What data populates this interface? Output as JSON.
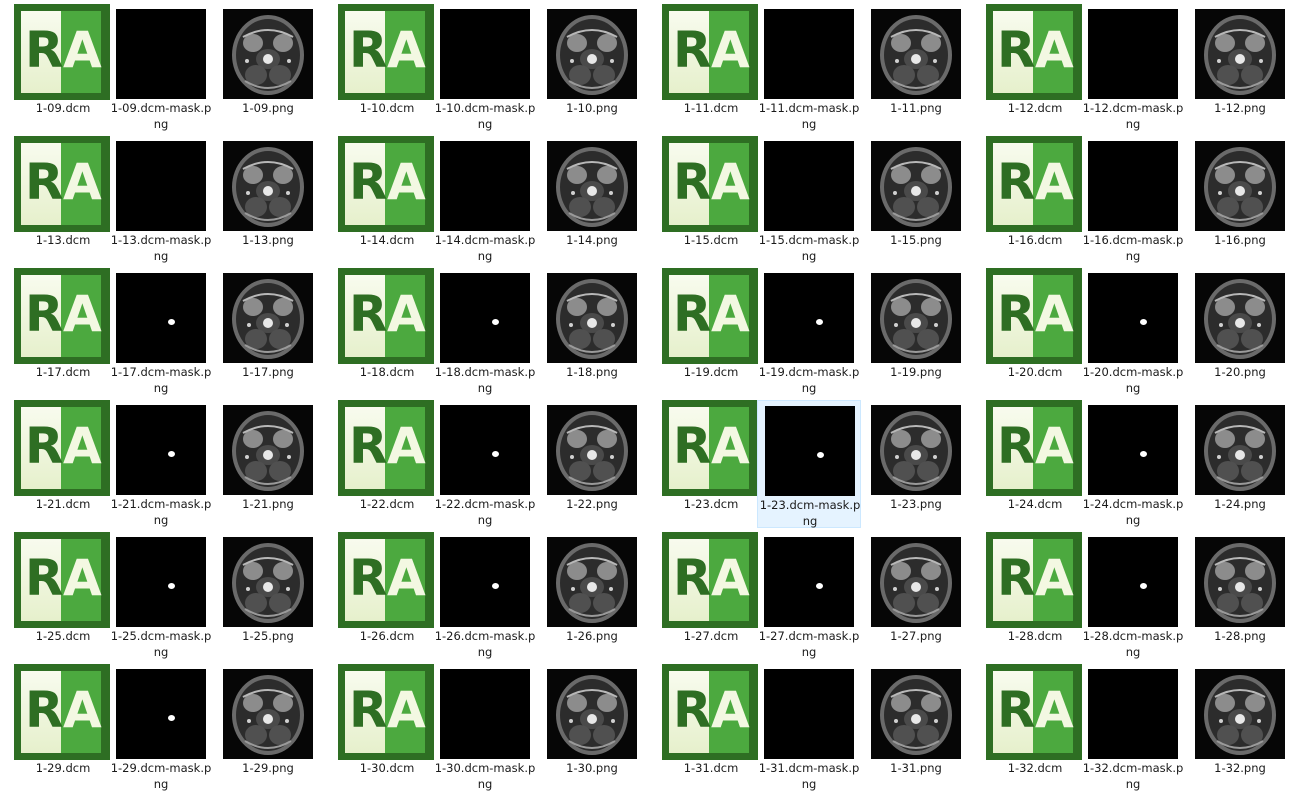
{
  "icon": "dicom-ra-icon",
  "icon_letters": [
    "R",
    "A"
  ],
  "colors": {
    "dark_green": "#2e6e23",
    "light_green": "#4ca93f",
    "cream": "#f3f8e2",
    "selection_bg": "#e5f3ff"
  },
  "selected_file": "1-23.dcm-mask.png",
  "groups": [
    {
      "dcm": "1-09.dcm",
      "mask": "1-09.dcm-mask.png",
      "png": "1-09.png",
      "lesion": 0
    },
    {
      "dcm": "1-10.dcm",
      "mask": "1-10.dcm-mask.png",
      "png": "1-10.png",
      "lesion": 0
    },
    {
      "dcm": "1-11.dcm",
      "mask": "1-11.dcm-mask.png",
      "png": "1-11.png",
      "lesion": 0
    },
    {
      "dcm": "1-12.dcm",
      "mask": "1-12.dcm-mask.png",
      "png": "1-12.png",
      "lesion": 0
    },
    {
      "dcm": "1-13.dcm",
      "mask": "1-13.dcm-mask.png",
      "png": "1-13.png",
      "lesion": 0
    },
    {
      "dcm": "1-14.dcm",
      "mask": "1-14.dcm-mask.png",
      "png": "1-14.png",
      "lesion": 0
    },
    {
      "dcm": "1-15.dcm",
      "mask": "1-15.dcm-mask.png",
      "png": "1-15.png",
      "lesion": 0
    },
    {
      "dcm": "1-16.dcm",
      "mask": "1-16.dcm-mask.png",
      "png": "1-16.png",
      "lesion": 0
    },
    {
      "dcm": "1-17.dcm",
      "mask": "1-17.dcm-mask.png",
      "png": "1-17.png",
      "lesion": 1
    },
    {
      "dcm": "1-18.dcm",
      "mask": "1-18.dcm-mask.png",
      "png": "1-18.png",
      "lesion": 1
    },
    {
      "dcm": "1-19.dcm",
      "mask": "1-19.dcm-mask.png",
      "png": "1-19.png",
      "lesion": 1
    },
    {
      "dcm": "1-20.dcm",
      "mask": "1-20.dcm-mask.png",
      "png": "1-20.png",
      "lesion": 1
    },
    {
      "dcm": "1-21.dcm",
      "mask": "1-21.dcm-mask.png",
      "png": "1-21.png",
      "lesion": 1
    },
    {
      "dcm": "1-22.dcm",
      "mask": "1-22.dcm-mask.png",
      "png": "1-22.png",
      "lesion": 1
    },
    {
      "dcm": "1-23.dcm",
      "mask": "1-23.dcm-mask.png",
      "png": "1-23.png",
      "lesion": 1
    },
    {
      "dcm": "1-24.dcm",
      "mask": "1-24.dcm-mask.png",
      "png": "1-24.png",
      "lesion": 1
    },
    {
      "dcm": "1-25.dcm",
      "mask": "1-25.dcm-mask.png",
      "png": "1-25.png",
      "lesion": 1
    },
    {
      "dcm": "1-26.dcm",
      "mask": "1-26.dcm-mask.png",
      "png": "1-26.png",
      "lesion": 1
    },
    {
      "dcm": "1-27.dcm",
      "mask": "1-27.dcm-mask.png",
      "png": "1-27.png",
      "lesion": 1
    },
    {
      "dcm": "1-28.dcm",
      "mask": "1-28.dcm-mask.png",
      "png": "1-28.png",
      "lesion": 1
    },
    {
      "dcm": "1-29.dcm",
      "mask": "1-29.dcm-mask.png",
      "png": "1-29.png",
      "lesion": 1
    },
    {
      "dcm": "1-30.dcm",
      "mask": "1-30.dcm-mask.png",
      "png": "1-30.png",
      "lesion": 0
    },
    {
      "dcm": "1-31.dcm",
      "mask": "1-31.dcm-mask.png",
      "png": "1-31.png",
      "lesion": 0
    },
    {
      "dcm": "1-32.dcm",
      "mask": "1-32.dcm-mask.png",
      "png": "1-32.png",
      "lesion": 0
    }
  ]
}
